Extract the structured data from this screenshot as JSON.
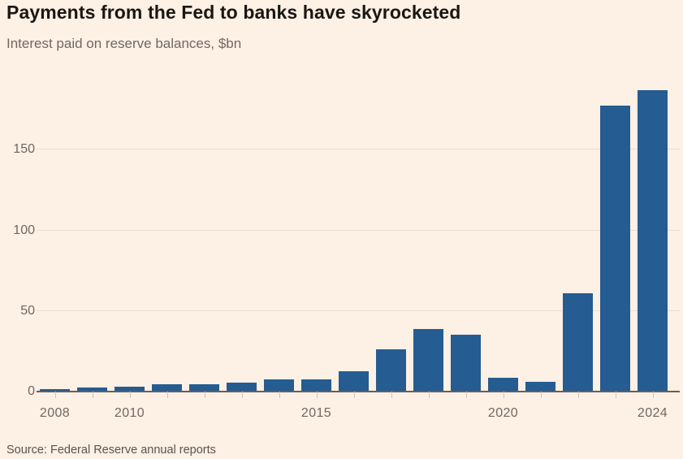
{
  "header": {
    "title": "Payments from the Fed to banks have skyrocketed",
    "subtitle": "Interest paid on reserve balances, $bn"
  },
  "footer": {
    "source": "Source: Federal Reserve annual reports"
  },
  "colors": {
    "background": "#FDF0E5",
    "bar": "#255C92",
    "title_text": "#1A1713",
    "muted_text": "#6F6862"
  },
  "chart_data": {
    "type": "bar",
    "title": "Payments from the Fed to banks have skyrocketed",
    "subtitle": "Interest paid on reserve balances, $bn",
    "xlabel": "",
    "ylabel": "Interest paid on reserve balances, $bn",
    "categories": [
      2008,
      2009,
      2010,
      2011,
      2012,
      2013,
      2014,
      2015,
      2016,
      2017,
      2018,
      2019,
      2020,
      2021,
      2022,
      2023,
      2024
    ],
    "values": [
      0.9,
      2.2,
      2.7,
      3.8,
      3.9,
      5.2,
      6.9,
      6.9,
      12.1,
      25.9,
      38.5,
      34.8,
      7.9,
      5.3,
      60.4,
      176.8,
      186.4
    ],
    "ylim": [
      0,
      200
    ],
    "yticks": [
      0,
      50,
      100,
      150
    ],
    "xtick_labels": [
      {
        "label": "2008",
        "index": 0
      },
      {
        "label": "2010",
        "index": 2
      },
      {
        "label": "2015",
        "index": 7
      },
      {
        "label": "2020",
        "index": 12
      },
      {
        "label": "2024",
        "index": 16
      }
    ],
    "grid": true,
    "legend": "none",
    "source": "Source: Federal Reserve annual reports"
  }
}
